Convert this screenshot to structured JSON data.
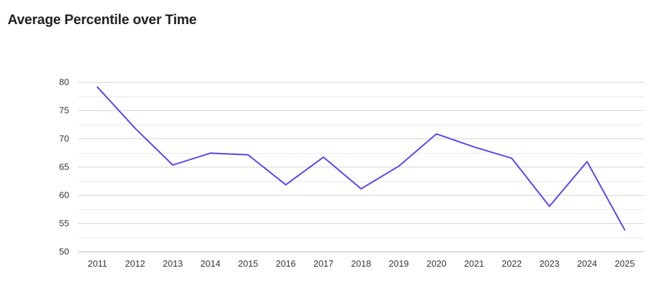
{
  "title": "Average Percentile over Time",
  "chart_data": {
    "type": "line",
    "title": "Average Percentile over Time",
    "xlabel": "",
    "ylabel": "",
    "x": [
      "2011",
      "2012",
      "2013",
      "2014",
      "2015",
      "2016",
      "2017",
      "2018",
      "2019",
      "2020",
      "2021",
      "2022",
      "2023",
      "2024",
      "2025"
    ],
    "series": [
      {
        "values": [
          79.1,
          71.8,
          65.3,
          67.4,
          67.1,
          61.8,
          66.7,
          61.1,
          65.1,
          70.8,
          68.5,
          66.5,
          58.0,
          65.9,
          53.8
        ]
      }
    ],
    "ylim": [
      50,
      80
    ],
    "yticks": [
      50,
      55,
      60,
      65,
      70,
      75,
      80
    ],
    "grid": true,
    "legend": "none",
    "line_color": "#5b3df5",
    "grid_color": "#d4d4d4",
    "minor_grid_color": "#ebebeb"
  }
}
